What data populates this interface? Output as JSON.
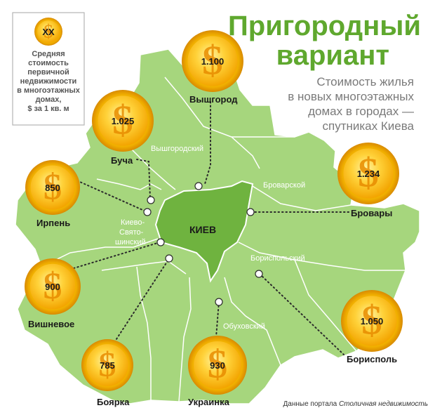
{
  "title_lines": [
    "Пригородный",
    "вариант"
  ],
  "subtitle_lines": [
    "Стоимость жилья",
    "в новых многоэтажных",
    "домах в городах —",
    "спутниках Киева"
  ],
  "legend": {
    "coin_value": "ХХ",
    "lines": [
      "Средняя",
      "стоимость",
      "первичной",
      "недвижимости",
      "в многоэтажных",
      "домах,",
      "$ за 1 кв. м"
    ]
  },
  "center_label": "КИЕВ",
  "districts": [
    {
      "id": "vyshgorodsky",
      "label": "Вышгородский"
    },
    {
      "id": "brovarsky",
      "label": "Броварской"
    },
    {
      "id": "kievo-sviatoshinsky",
      "lines": [
        "Киево-",
        "Свято-",
        "шинский"
      ]
    },
    {
      "id": "borispolsky",
      "label": "Бориспольский"
    },
    {
      "id": "obukhovsky",
      "label": "Обуховский"
    }
  ],
  "cities": [
    {
      "id": "vyshgorod",
      "name": "Вышгород",
      "value": "1.100"
    },
    {
      "id": "bucha",
      "name": "Буча",
      "value": "1.025"
    },
    {
      "id": "brovary",
      "name": "Бровары",
      "value": "1.234"
    },
    {
      "id": "irpen",
      "name": "Ирпень",
      "value": "850"
    },
    {
      "id": "vishnevoe",
      "name": "Вишневое",
      "value": "900"
    },
    {
      "id": "boryspil",
      "name": "Борисполь",
      "value": "1.050"
    },
    {
      "id": "boyarka",
      "name": "Боярка",
      "value": "785"
    },
    {
      "id": "ukrainka",
      "name": "Украинка",
      "value": "930"
    }
  ],
  "source": {
    "prefix": "Данные портала ",
    "name": "Столичная недвижимость"
  },
  "colors": {
    "region": "#a6d67d",
    "kiev": "#6fb33f",
    "title": "#5fa82e",
    "coin_outer": "#f2a900",
    "coin_inner": "#ffd23a",
    "dollar": "#e58a00"
  }
}
